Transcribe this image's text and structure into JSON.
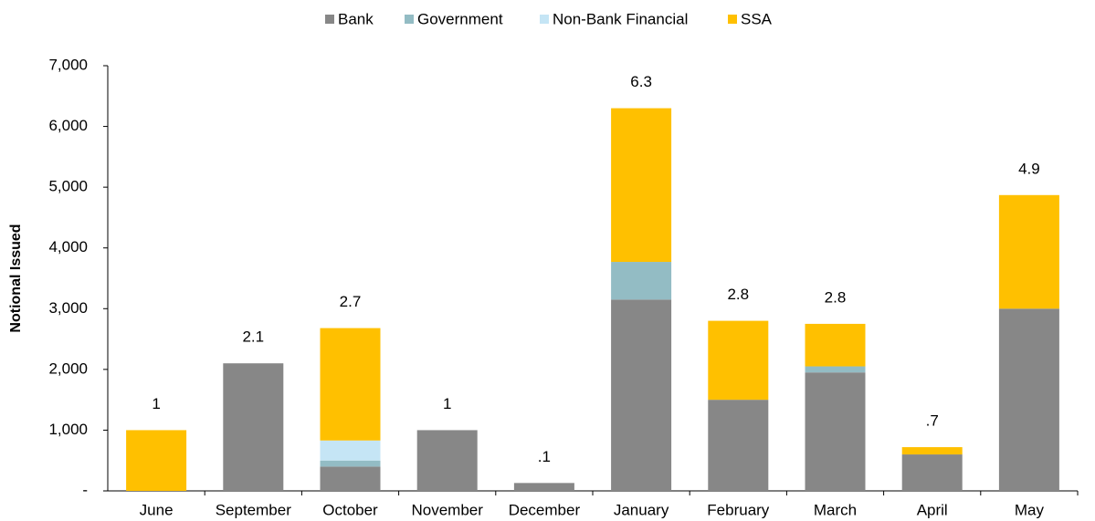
{
  "chart_data": {
    "type": "stacked_bar",
    "ylabel": "Notional Issued",
    "categories": [
      "June",
      "September",
      "October",
      "November",
      "December",
      "January",
      "February",
      "March",
      "April",
      "May"
    ],
    "series": [
      {
        "name": "Bank",
        "color": "#878787",
        "values": [
          0,
          2100,
          400,
          1000,
          130,
          3150,
          1500,
          1950,
          600,
          3000
        ]
      },
      {
        "name": "Government",
        "color": "#93bcc4",
        "values": [
          0,
          0,
          100,
          0,
          0,
          620,
          0,
          100,
          0,
          0
        ]
      },
      {
        "name": "Non-Bank Financial",
        "color": "#c5e5f5",
        "values": [
          0,
          0,
          330,
          0,
          0,
          0,
          0,
          0,
          0,
          0
        ]
      },
      {
        "name": "SSA",
        "color": "#ffc000",
        "values": [
          1000,
          0,
          1850,
          0,
          0,
          2530,
          1300,
          700,
          120,
          1870
        ]
      }
    ],
    "totals": {
      "values": [
        1000,
        2100,
        2680,
        1000,
        130,
        6300,
        2800,
        2750,
        720,
        4870
      ],
      "value_labels": [
        "1",
        "2.1",
        "2.7",
        "1",
        ".1",
        "6.3",
        "2.8",
        "2.8",
        ".7",
        "4.9"
      ]
    },
    "ylim": [
      0,
      7000
    ],
    "yticks": [
      {
        "value": 0,
        "label": "-"
      },
      {
        "value": 1000,
        "label": "1,000"
      },
      {
        "value": 2000,
        "label": "2,000"
      },
      {
        "value": 3000,
        "label": "3,000"
      },
      {
        "value": 4000,
        "label": "4,000"
      },
      {
        "value": 5000,
        "label": "5,000"
      },
      {
        "value": 6000,
        "label": "6,000"
      },
      {
        "value": 7000,
        "label": "7,000"
      }
    ],
    "legend": "top"
  }
}
